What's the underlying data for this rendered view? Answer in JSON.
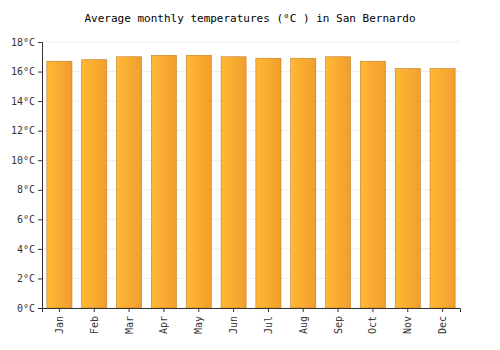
{
  "chart_data": {
    "type": "bar",
    "title": "Average monthly temperatures (°C ) in San Bernardo",
    "categories": [
      "Jan",
      "Feb",
      "Mar",
      "Apr",
      "May",
      "Jun",
      "Jul",
      "Aug",
      "Sep",
      "Oct",
      "Nov",
      "Dec"
    ],
    "values": [
      16.7,
      16.8,
      17.0,
      17.1,
      17.1,
      17.0,
      16.9,
      16.9,
      17.0,
      16.7,
      16.2,
      16.2
    ],
    "color": "#ffa630",
    "ylim": [
      0,
      18
    ],
    "yticks": [
      {
        "value": 0,
        "label": "0°C"
      },
      {
        "value": 2,
        "label": "2°C"
      },
      {
        "value": 4,
        "label": "4°C"
      },
      {
        "value": 6,
        "label": "6°C"
      },
      {
        "value": 8,
        "label": "8°C"
      },
      {
        "value": 10,
        "label": "10°C"
      },
      {
        "value": 12,
        "label": "12°C"
      },
      {
        "value": 14,
        "label": "14°C"
      },
      {
        "value": 16,
        "label": "16°C"
      },
      {
        "value": 18,
        "label": "18°C"
      }
    ],
    "grid": true
  }
}
